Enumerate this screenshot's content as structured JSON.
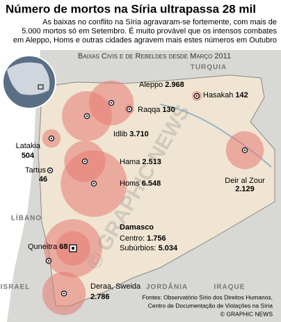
{
  "header": {
    "title": "Número de mortos na Síria ultrapassa 28 mil",
    "subtitle": [
      "As baixas no conflito na Síria agravaram-se fortemente, com mais de",
      "5.000 mortos só em Setembro. É muito provável que os intensos combates",
      "em Aleppo, Homs e outras cidades agravem mais estes números em Outubro"
    ]
  },
  "map": {
    "title": "Baixas Civis e de Rebeldes desde Março 2011",
    "cities": [
      {
        "name": "Aleppo",
        "value": 2968,
        "label": "2.968"
      },
      {
        "name": "Hasakah",
        "value": 142,
        "label": "142"
      },
      {
        "name": "Raqqa",
        "value": 130,
        "label": "130"
      },
      {
        "name": "Idlib",
        "value": 3710,
        "label": "3.710"
      },
      {
        "name": "Latakia",
        "value": 504,
        "label": "504"
      },
      {
        "name": "Hama",
        "value": 2513,
        "label": "2.513"
      },
      {
        "name": "Tartus",
        "value": 46,
        "label": "46"
      },
      {
        "name": "Homs",
        "value": 6548,
        "label": "6.548"
      },
      {
        "name": "Deir al Zour",
        "value": 2129,
        "label": "2.129"
      },
      {
        "name": "Quneitra",
        "value": 68,
        "label": "68"
      },
      {
        "name": "Deraa, Sweida",
        "value": 2786,
        "label": "2.786"
      }
    ],
    "damascus": {
      "name": "Damasco",
      "parts": [
        {
          "name": "Subúrbios:",
          "value": 5034,
          "label": "5.034"
        },
        {
          "name": "Centro:",
          "value": 1756,
          "label": "1.756"
        }
      ]
    },
    "countries": [
      "Turquia",
      "Líbano",
      "Jordânia",
      "Iraque",
      "Israel"
    ],
    "watermark": "© GRAPHIC NEWS"
  },
  "footer": {
    "sources": [
      "Fontes: Observatório Sírio dos Direitos Humanos,",
      "Centro de Documentação de Violações na Síria"
    ],
    "credit": "© GRAPHIC NEWS"
  }
}
